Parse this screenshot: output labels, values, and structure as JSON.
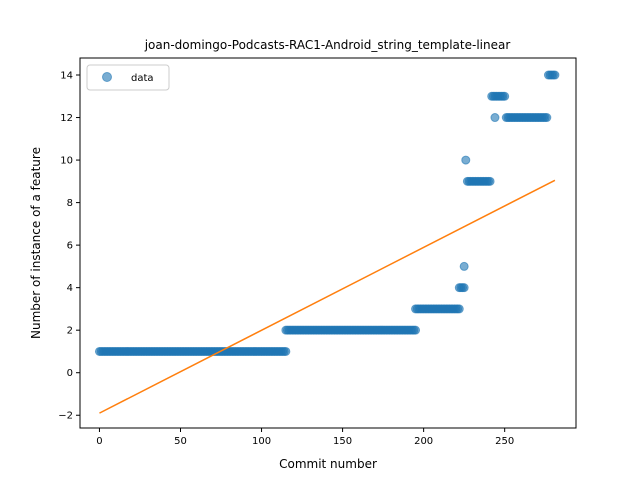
{
  "chart_data": {
    "type": "scatter",
    "title": "joan-domingo-Podcasts-RAC1-Android_string_template-linear",
    "xlabel": "Commit number",
    "ylabel": "Number of instance of a feature",
    "xlim": [
      -12,
      294
    ],
    "ylim": [
      -2.6,
      14.8
    ],
    "xticks": [
      0,
      50,
      100,
      150,
      200,
      250
    ],
    "yticks": [
      -2,
      0,
      2,
      4,
      6,
      8,
      10,
      12,
      14
    ],
    "grid": false,
    "legend": {
      "placement": "top-left",
      "entries": [
        "data"
      ]
    },
    "colors": {
      "points": "#1f77b4",
      "fit": "#ff7f0e"
    },
    "series": [
      {
        "name": "data",
        "kind": "points",
        "runs": [
          {
            "x_start": 0,
            "x_end": 115,
            "y": 1
          },
          {
            "x_start": 115,
            "x_end": 195,
            "y": 2
          },
          {
            "x_start": 195,
            "x_end": 222,
            "y": 3
          },
          {
            "x_start": 222,
            "x_end": 225,
            "y": 4
          },
          {
            "x_start": 227,
            "x_end": 241,
            "y": 9
          },
          {
            "x_start": 242,
            "x_end": 250,
            "y": 13
          },
          {
            "x_start": 251,
            "x_end": 276,
            "y": 12
          },
          {
            "x_start": 277,
            "x_end": 281,
            "y": 14
          }
        ],
        "points": [
          {
            "x": 225,
            "y": 5
          },
          {
            "x": 226,
            "y": 10
          },
          {
            "x": 244,
            "y": 12
          }
        ]
      },
      {
        "name": "",
        "kind": "line",
        "x": [
          0,
          281
        ],
        "y": [
          -1.9,
          9.05
        ]
      }
    ]
  }
}
